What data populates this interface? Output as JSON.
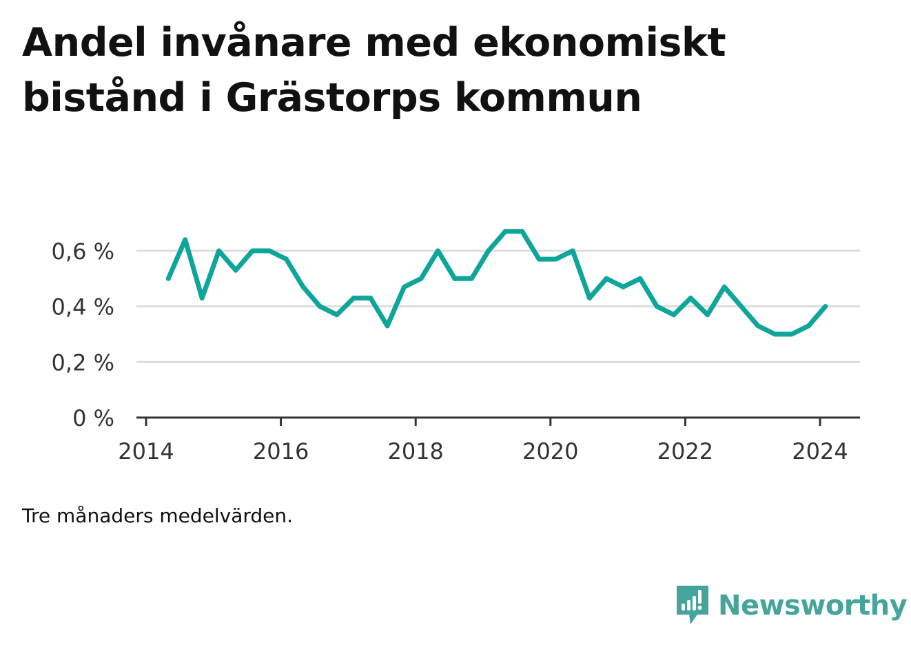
{
  "title": "Andel invånare med ekonomiskt bistånd i Grästorps kommun",
  "note": "Tre månaders medelvärden.",
  "brand": {
    "name": "Newsworthy",
    "icon": "newsworthy-logo-icon"
  },
  "colors": {
    "line": "#0ea59a",
    "grid": "#dddddd",
    "axis": "#333333",
    "brand": "#45a49b"
  },
  "chart_data": {
    "type": "line",
    "title": "Andel invånare med ekonomiskt bistånd i Grästorps kommun",
    "xlabel": "",
    "ylabel": "",
    "xlim": [
      2014,
      2024.45
    ],
    "ylim": [
      0,
      0.7
    ],
    "grid": true,
    "legend": "none",
    "x_ticks": [
      2014,
      2016,
      2018,
      2020,
      2022,
      2024
    ],
    "x_tick_labels": [
      "2014",
      "2016",
      "2018",
      "2020",
      "2022",
      "2024"
    ],
    "y_ticks": [
      0,
      0.2,
      0.4,
      0.6
    ],
    "y_tick_labels": [
      "0 %",
      "0,2 %",
      "0,4 %",
      "0,6 %"
    ],
    "series": [
      {
        "x": [
          2014.33,
          2014.58,
          2014.83,
          2015.08,
          2015.33,
          2015.58,
          2015.83,
          2016.08,
          2016.33,
          2016.58,
          2016.83,
          2017.08,
          2017.33,
          2017.58,
          2017.83,
          2018.08,
          2018.33,
          2018.58,
          2018.83,
          2019.08,
          2019.33,
          2019.58,
          2019.83,
          2020.08,
          2020.33,
          2020.58,
          2020.83,
          2021.08,
          2021.33,
          2021.58,
          2021.83,
          2022.08,
          2022.33,
          2022.58,
          2022.83,
          2023.08,
          2023.33,
          2023.58,
          2023.83,
          2024.08
        ],
        "values": [
          0.5,
          0.64,
          0.43,
          0.6,
          0.53,
          0.6,
          0.6,
          0.57,
          0.47,
          0.4,
          0.37,
          0.43,
          0.43,
          0.33,
          0.47,
          0.5,
          0.6,
          0.5,
          0.5,
          0.6,
          0.67,
          0.67,
          0.57,
          0.57,
          0.6,
          0.43,
          0.5,
          0.47,
          0.5,
          0.4,
          0.37,
          0.43,
          0.37,
          0.47,
          0.4,
          0.33,
          0.3,
          0.3,
          0.33,
          0.4
        ]
      }
    ]
  }
}
